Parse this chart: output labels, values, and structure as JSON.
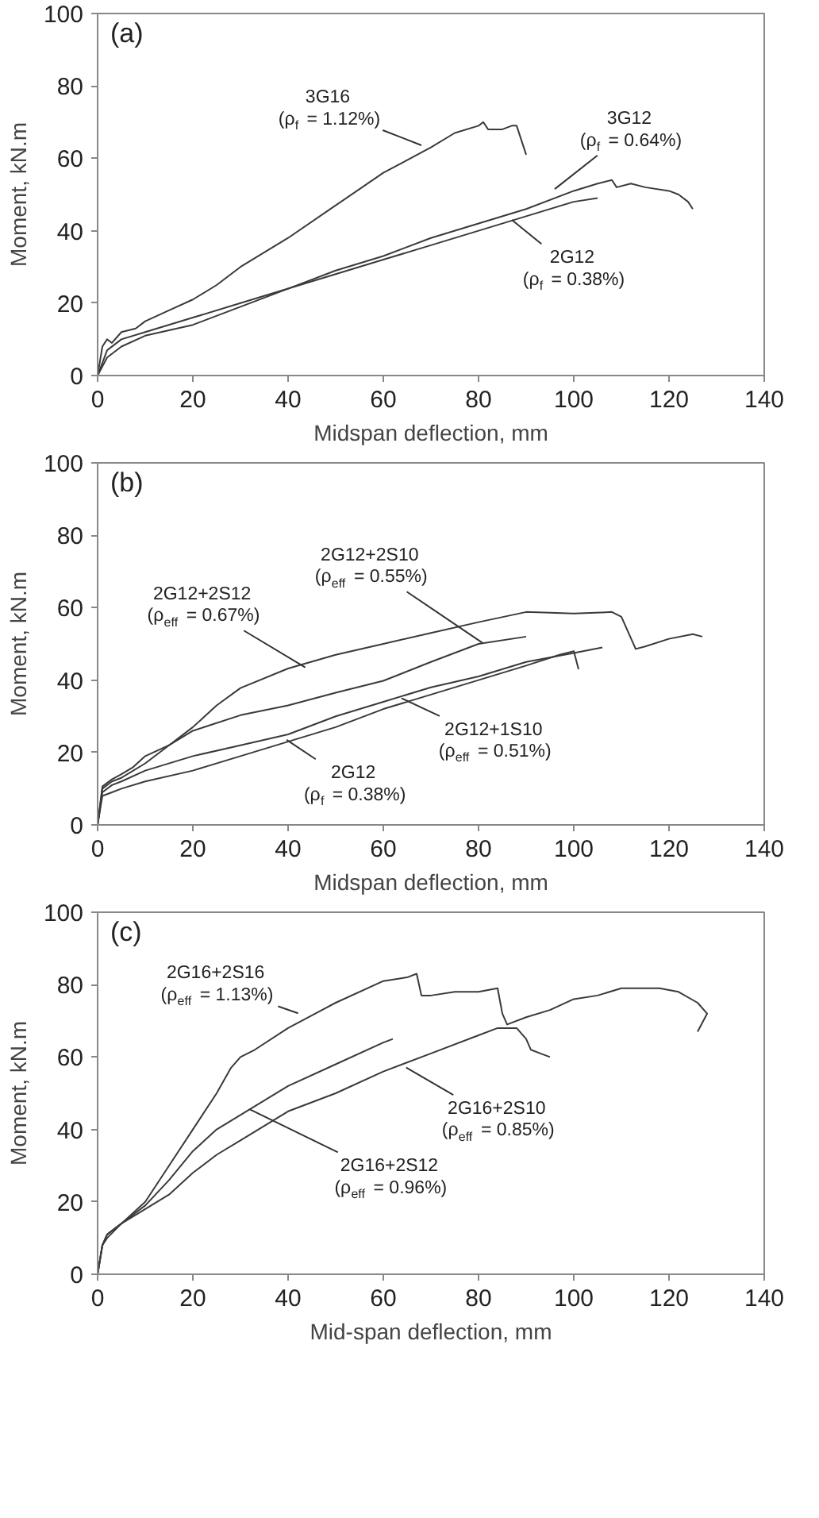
{
  "chart_data": [
    {
      "type": "line",
      "xlabel": "Midspan deflection, mm",
      "ylabel": "Moment, kN.m",
      "xlim": [
        0,
        140
      ],
      "ylim": [
        0,
        100
      ],
      "xticks": [
        0,
        20,
        40,
        60,
        80,
        100,
        120,
        140
      ],
      "yticks": [
        0,
        20,
        40,
        60,
        80,
        100
      ],
      "series": [
        {
          "color": "#3a3a3a",
          "x": [
            0,
            1,
            2,
            3,
            5,
            8,
            10,
            15,
            20,
            25,
            30,
            40,
            50,
            60,
            70,
            75,
            80,
            81,
            82,
            85,
            87,
            88,
            89,
            90
          ],
          "values": [
            0,
            8,
            10,
            9,
            12,
            13,
            15,
            18,
            21,
            25,
            30,
            38,
            47,
            56,
            63,
            67,
            69,
            70,
            68,
            68,
            69,
            69,
            65,
            61
          ]
        },
        {
          "color": "#3a3a3a",
          "x": [
            0,
            2,
            5,
            10,
            20,
            30,
            40,
            50,
            60,
            70,
            80,
            90,
            100,
            105,
            108,
            109,
            112,
            115,
            120,
            122,
            124,
            125
          ],
          "values": [
            0,
            7,
            10,
            12,
            16,
            20,
            24,
            29,
            33,
            38,
            42,
            46,
            51,
            53,
            54,
            52,
            53,
            52,
            51,
            50,
            48,
            46
          ]
        },
        {
          "color": "#3a3a3a",
          "x": [
            0,
            2,
            5,
            10,
            20,
            30,
            40,
            50,
            60,
            70,
            80,
            90,
            100,
            105
          ],
          "values": [
            0,
            5,
            8,
            11,
            14,
            19,
            24,
            28,
            32,
            36,
            40,
            44,
            48,
            49
          ]
        }
      ],
      "annotations": [
        "(a)",
        {
          "text": "3G16\n(ρ$_{f}$ = 1.12%)",
          "x": 68,
          "y": 63.6
        },
        {
          "text": "3G12\n(ρ$_{f}$ = 0.64%)",
          "x": 96,
          "y": 51.5
        },
        {
          "text": "2G12\n(ρ$_{f}$ = 0.38%)",
          "x": 87,
          "y": 43
        }
      ]
    },
    {
      "type": "line",
      "xlabel": "Midspan deflection, mm",
      "ylabel": "Moment, kN.m",
      "xlim": [
        0,
        140
      ],
      "ylim": [
        0,
        100
      ],
      "xticks": [
        0,
        20,
        40,
        60,
        80,
        100,
        120,
        140
      ],
      "yticks": [
        0,
        20,
        40,
        60,
        80,
        100
      ],
      "series": [
        {
          "color": "#3a3a3a",
          "x": [
            0,
            1,
            3,
            5,
            7.5,
            10,
            15,
            20,
            25,
            30,
            40,
            50,
            60,
            70,
            80,
            90,
            100,
            108,
            110,
            113,
            115,
            120,
            125,
            127
          ],
          "values": [
            0,
            10.6,
            12.6,
            14,
            16,
            19,
            22,
            27,
            33,
            37.8,
            43.2,
            47,
            50,
            53,
            56,
            58.8,
            58.4,
            58.8,
            57.5,
            48.6,
            49.3,
            51.4,
            52.7,
            52
          ]
        },
        {
          "color": "#3a3a3a",
          "x": [
            0,
            1,
            3,
            5,
            10,
            15,
            20,
            30,
            40,
            50,
            60,
            70,
            80,
            90
          ],
          "values": [
            0,
            10,
            12,
            13,
            17,
            22,
            26,
            30.3,
            33,
            36.5,
            39.8,
            45,
            50,
            52
          ]
        },
        {
          "color": "#3a3a3a",
          "x": [
            0,
            1,
            3,
            5,
            10,
            20,
            30,
            40,
            50,
            60,
            70,
            80,
            90,
            100,
            106
          ],
          "values": [
            0,
            9,
            11,
            12,
            15,
            19,
            22,
            25,
            30,
            34,
            38,
            41,
            45,
            47.5,
            49
          ]
        },
        {
          "color": "#3a3a3a",
          "x": [
            0,
            1,
            3,
            5,
            10,
            20,
            30,
            40,
            50,
            60,
            70,
            80,
            90,
            97,
            100,
            101
          ],
          "values": [
            0,
            8,
            9,
            10,
            12,
            15,
            19,
            23,
            27,
            32,
            36,
            40,
            44,
            47,
            48,
            43
          ]
        }
      ],
      "annotations": [
        "(b)",
        {
          "text": "2G12+2S12\n(ρ$_{eff}$ = 0.67%)",
          "x": 43.6,
          "y": 43.5
        },
        {
          "text": "2G12+2S10\n(ρ$_{eff}$ = 0.55%)",
          "x": 80.8,
          "y": 50.3
        },
        {
          "text": "2G12+1S10\n(ρ$_{eff}$ = 0.51%)",
          "x": 63.8,
          "y": 35
        },
        {
          "text": "2G12\n(ρ$_{f}$ = 0.38%)",
          "x": 39.7,
          "y": 23.5
        }
      ]
    },
    {
      "type": "line",
      "xlabel": "Mid-span deflection, mm",
      "ylabel": "Moment, kN.m",
      "xlim": [
        0,
        140
      ],
      "ylim": [
        0,
        100
      ],
      "xticks": [
        0,
        20,
        40,
        60,
        80,
        100,
        120,
        140
      ],
      "yticks": [
        0,
        20,
        40,
        60,
        80,
        100
      ],
      "series": [
        {
          "color": "#3a3a3a",
          "x": [
            0,
            1,
            2,
            5,
            10,
            15,
            20,
            25,
            28,
            30,
            33,
            40,
            50,
            60,
            65,
            67,
            68,
            70,
            75,
            80,
            84,
            85,
            86,
            90,
            95,
            100,
            105,
            110,
            118,
            122,
            126,
            128,
            126
          ],
          "values": [
            0,
            8,
            11,
            14,
            20,
            30,
            40,
            50,
            57,
            60,
            62,
            68,
            75,
            81,
            82,
            83,
            77,
            77,
            78,
            78,
            79,
            72,
            69,
            71,
            73,
            76,
            77,
            79,
            79,
            78,
            75,
            72,
            67
          ]
        },
        {
          "color": "#3a3a3a",
          "x": [
            0,
            1,
            2,
            5,
            10,
            15,
            20,
            25,
            30,
            40,
            50,
            60,
            70,
            80,
            84,
            88,
            90,
            91,
            93,
            95
          ],
          "values": [
            0,
            8,
            10,
            14,
            18,
            22,
            28,
            33,
            37,
            45,
            50,
            56,
            61,
            66,
            68,
            68,
            65,
            62,
            61,
            60
          ]
        },
        {
          "color": "#3a3a3a",
          "x": [
            0,
            1,
            2,
            5,
            10,
            15,
            20,
            25,
            30,
            35,
            40,
            50,
            60,
            62
          ],
          "values": [
            0,
            8,
            11,
            14,
            19,
            26,
            34,
            40,
            44,
            48,
            52,
            58,
            64,
            65
          ]
        }
      ],
      "annotations": [
        "(c)",
        {
          "text": "2G16+2S16\n(ρ$_{eff}$ = 1.13%)",
          "x": 42.1,
          "y": 72.1
        },
        {
          "text": "2G16+2S10\n(ρ$_{eff}$ = 0.85%)",
          "x": 64.8,
          "y": 57.1
        },
        {
          "text": "2G16+2S12\n(ρ$_{eff}$ = 0.96%)",
          "x": 31.9,
          "y": 45.6
        }
      ]
    }
  ]
}
